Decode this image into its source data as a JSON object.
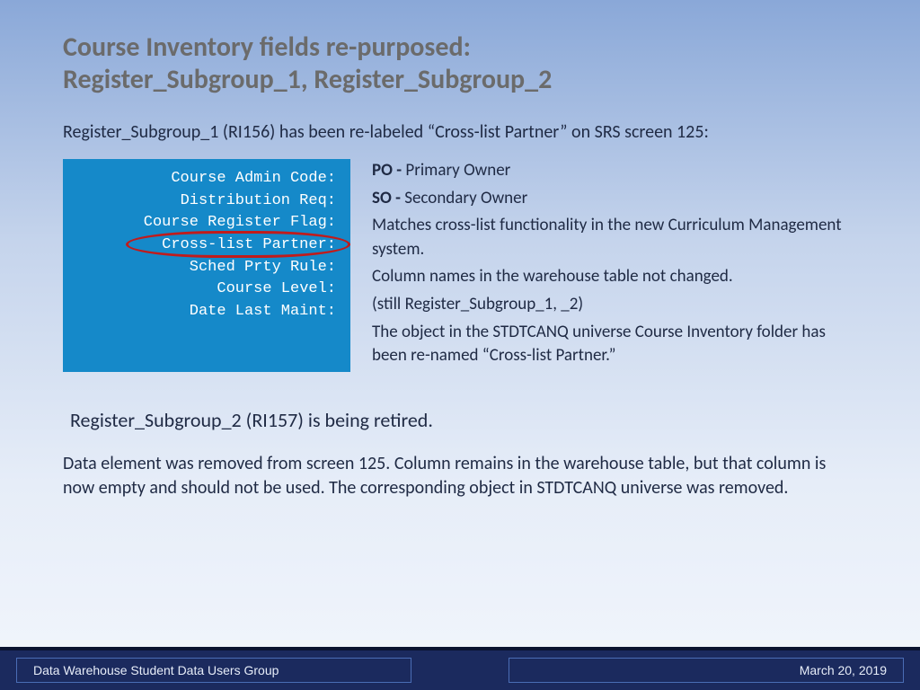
{
  "title_line1": "Course Inventory fields re-purposed:",
  "title_line2": "Register_Subgroup_1, Register_Subgroup_2",
  "intro": "Register_Subgroup_1 (RI156) has been re-labeled “Cross-list Partner” on SRS screen 125:",
  "screenshot": {
    "bg_color": "#1589c9",
    "text_color": "#ffffff",
    "circle_color": "#c11b1b",
    "lines": [
      "Course Admin Code:",
      "Distribution Req:",
      "Course Register Flag:",
      "Cross-list Partner:",
      "Sched Prty Rule:",
      "Course Level:",
      "Date Last Maint:"
    ],
    "highlighted_index": 3
  },
  "details": {
    "po_label": "PO - ",
    "po_text": "Primary Owner",
    "so_label": "SO - ",
    "so_text": "Secondary Owner",
    "p1": "Matches cross-list functionality in the new Curriculum Management system.",
    "p2": "Column names in the warehouse table not changed.",
    "p3": "(still Register_Subgroup_1, _2)",
    "p4": "The object in the STDTCANQ universe Course Inventory folder has been re-named “Cross-list Partner.”"
  },
  "section2": {
    "heading": "Register_Subgroup_2 (RI157) is being retired.",
    "body": "Data element was removed from screen 125. Column remains in the warehouse table, but that column is now empty and should not be used.  The corresponding object in STDTCANQ universe was removed."
  },
  "footer": {
    "left": "Data Warehouse Student Data Users Group",
    "right": "March 20, 2019",
    "bg_color": "#1b2a5e",
    "border_color": "#4a6db5"
  }
}
